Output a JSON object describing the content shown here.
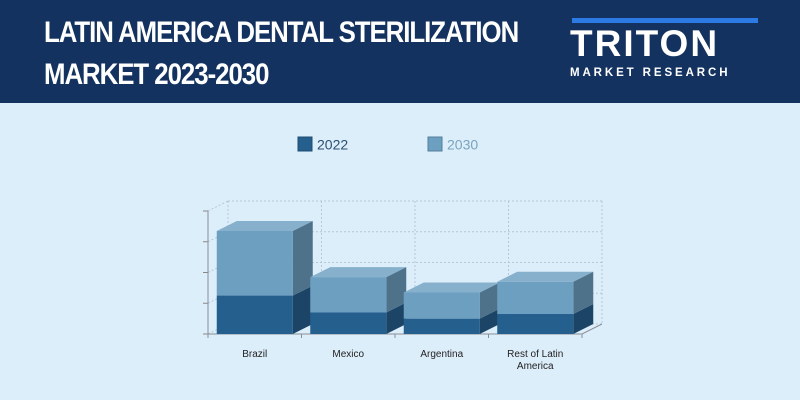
{
  "header": {
    "title_line1": "LATIN AMERICA DENTAL STERILIZATION",
    "title_line2": "MARKET 2023-2030"
  },
  "logo": {
    "name": "TRITON",
    "subtitle": "MARKET RESEARCH"
  },
  "colors": {
    "header_bg": "#13325f",
    "page_bg": "#ddeefb",
    "series_2022": "#255f8e",
    "series_2030": "#6c9fc0",
    "logo_accent": "#2c7be5"
  },
  "chart_data": {
    "type": "bar",
    "stacked": true,
    "three_d": true,
    "title": "",
    "xlabel": "",
    "ylabel": "",
    "categories": [
      "Brazil",
      "Mexico",
      "Argentina",
      "Rest of Latin America"
    ],
    "series": [
      {
        "name": "2022",
        "values": [
          1.25,
          0.7,
          0.5,
          0.65
        ]
      },
      {
        "name": "2030",
        "values": [
          2.1,
          1.15,
          0.85,
          1.05
        ]
      }
    ],
    "ylim": [
      0,
      4
    ],
    "grid": true,
    "legend_position": "top-center"
  }
}
